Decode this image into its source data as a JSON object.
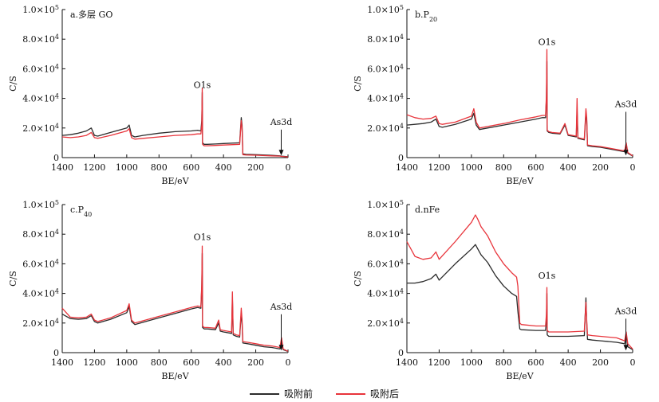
{
  "colors": {
    "before": "#2b2b2b",
    "after": "#e8343b",
    "axis": "#111111"
  },
  "legend": {
    "before_label": "吸附前",
    "after_label": "吸附后"
  },
  "chart_data": [
    {
      "type": "line",
      "panel_label": "a.多层 GO",
      "xlabel": "BE/eV",
      "ylabel": "C/S",
      "xlim": [
        1400,
        0
      ],
      "ylim": [
        0,
        100000
      ],
      "xticks": [
        "1400",
        "1200",
        "1000",
        "800",
        "600",
        "400",
        "200",
        "0"
      ],
      "yticks": [
        "0",
        "2.0×10⁴",
        "4.0×10⁴",
        "6.0×10⁴",
        "8.0×10⁴",
        "1.0×10⁵"
      ],
      "annotations": [
        {
          "text": "O1s",
          "x": 532,
          "y": 47000,
          "arrow": false
        },
        {
          "text": "As3d",
          "x": 42,
          "y": 20000,
          "arrow": true
        }
      ],
      "series": [
        {
          "name": "吸附前",
          "x": [
            1400,
            1350,
            1300,
            1250,
            1220,
            1200,
            1180,
            1100,
            1000,
            985,
            970,
            950,
            900,
            800,
            700,
            600,
            560,
            540,
            535,
            532,
            530,
            520,
            500,
            450,
            400,
            300,
            290,
            285,
            280,
            260,
            200,
            100,
            50,
            40,
            0
          ],
          "y": [
            15000,
            15500,
            16500,
            18000,
            20000,
            15000,
            14500,
            17000,
            20000,
            22000,
            15000,
            14000,
            15000,
            16500,
            17500,
            18000,
            18500,
            18000,
            25000,
            44000,
            10000,
            9000,
            9000,
            9200,
            9500,
            10000,
            27000,
            22000,
            2500,
            2200,
            2000,
            1500,
            1200,
            1000,
            600
          ]
        },
        {
          "name": "吸附后",
          "x": [
            1400,
            1350,
            1300,
            1250,
            1220,
            1200,
            1180,
            1100,
            1000,
            985,
            970,
            950,
            900,
            800,
            700,
            600,
            560,
            540,
            535,
            532,
            530,
            520,
            500,
            450,
            400,
            300,
            290,
            285,
            280,
            260,
            200,
            100,
            50,
            40,
            0
          ],
          "y": [
            14000,
            13500,
            14000,
            15000,
            17000,
            13500,
            13000,
            15000,
            18000,
            19500,
            13500,
            12500,
            13000,
            14000,
            15000,
            15500,
            16000,
            16000,
            22000,
            47000,
            9000,
            8000,
            8000,
            8200,
            8500,
            9000,
            25000,
            20000,
            2000,
            1800,
            1600,
            1200,
            1000,
            800,
            500
          ]
        }
      ]
    },
    {
      "type": "line",
      "panel_label": "b.P20",
      "xlabel": "BE/eV",
      "ylabel": "C/S",
      "xlim": [
        1400,
        0
      ],
      "ylim": [
        0,
        100000
      ],
      "xticks": [
        "1400",
        "1200",
        "1000",
        "800",
        "600",
        "400",
        "200",
        "0"
      ],
      "yticks": [
        "0",
        "2.0×10⁴",
        "4.0×10⁴",
        "6.0×10⁴",
        "8.0×10⁴",
        "1.0×10⁵"
      ],
      "annotations": [
        {
          "text": "O1s",
          "x": 532,
          "y": 76000,
          "arrow": false
        },
        {
          "text": "As3d",
          "x": 42,
          "y": 32000,
          "arrow": true
        }
      ],
      "series": [
        {
          "name": "吸附前",
          "x": [
            1400,
            1350,
            1300,
            1250,
            1220,
            1200,
            1180,
            1100,
            1000,
            985,
            970,
            950,
            900,
            800,
            700,
            600,
            560,
            540,
            535,
            532,
            530,
            520,
            500,
            450,
            420,
            400,
            350,
            345,
            340,
            300,
            290,
            285,
            280,
            250,
            200,
            150,
            100,
            50,
            40,
            30,
            0
          ],
          "y": [
            22000,
            22500,
            23000,
            24000,
            26000,
            21000,
            20500,
            22500,
            26000,
            30000,
            22000,
            19000,
            20000,
            22000,
            24000,
            26000,
            27000,
            27000,
            40000,
            65000,
            18000,
            17000,
            16500,
            16000,
            22000,
            15000,
            14000,
            32000,
            13000,
            12000,
            30000,
            25000,
            8000,
            7500,
            7000,
            6000,
            5000,
            4000,
            9000,
            3000,
            1000
          ]
        },
        {
          "name": "吸附后",
          "x": [
            1400,
            1350,
            1300,
            1250,
            1220,
            1200,
            1180,
            1100,
            1000,
            985,
            970,
            950,
            900,
            800,
            700,
            600,
            560,
            540,
            535,
            532,
            530,
            520,
            500,
            450,
            420,
            400,
            350,
            345,
            340,
            300,
            290,
            285,
            280,
            250,
            200,
            150,
            100,
            50,
            40,
            30,
            0
          ],
          "y": [
            29000,
            27000,
            26000,
            26500,
            28000,
            23000,
            22500,
            24000,
            28000,
            33000,
            24000,
            20000,
            21000,
            23000,
            25500,
            27500,
            28500,
            28500,
            42000,
            73000,
            18500,
            17500,
            17000,
            16500,
            23000,
            15500,
            14500,
            40000,
            13500,
            12500,
            33000,
            27000,
            8500,
            8000,
            7500,
            6500,
            5500,
            4500,
            10000,
            3500,
            1200
          ]
        }
      ]
    },
    {
      "type": "line",
      "panel_label": "c.P40",
      "xlabel": "BE/eV",
      "ylabel": "C/S",
      "xlim": [
        1400,
        0
      ],
      "ylim": [
        0,
        100000
      ],
      "xticks": [
        "1400",
        "1200",
        "1000",
        "800",
        "600",
        "400",
        "200",
        "0"
      ],
      "yticks": [
        "0",
        "2.0×10⁴",
        "4.0×10⁴",
        "6.0×10⁴",
        "8.0×10⁴",
        "1.0×10⁵"
      ],
      "annotations": [
        {
          "text": "O1s",
          "x": 532,
          "y": 76000,
          "arrow": false
        },
        {
          "text": "As3d",
          "x": 42,
          "y": 27000,
          "arrow": true
        }
      ],
      "series": [
        {
          "name": "吸附前",
          "x": [
            1400,
            1350,
            1300,
            1250,
            1220,
            1200,
            1180,
            1100,
            1000,
            985,
            970,
            950,
            900,
            800,
            700,
            600,
            560,
            540,
            535,
            532,
            530,
            520,
            500,
            450,
            430,
            420,
            400,
            350,
            345,
            340,
            320,
            300,
            290,
            285,
            280,
            250,
            200,
            150,
            100,
            50,
            40,
            30,
            0
          ],
          "y": [
            26000,
            23000,
            22500,
            23000,
            25000,
            21000,
            20000,
            22500,
            27000,
            31000,
            21000,
            19000,
            20500,
            23500,
            26500,
            29500,
            30500,
            30000,
            44000,
            67000,
            17000,
            16000,
            16000,
            15500,
            20000,
            14500,
            14000,
            13000,
            37000,
            12000,
            11000,
            10500,
            27000,
            20000,
            6500,
            6000,
            5000,
            4000,
            3500,
            2500,
            8000,
            2000,
            800
          ]
        },
        {
          "name": "吸附后",
          "x": [
            1400,
            1350,
            1300,
            1250,
            1220,
            1200,
            1180,
            1100,
            1000,
            985,
            970,
            950,
            900,
            800,
            700,
            600,
            560,
            540,
            535,
            532,
            530,
            520,
            500,
            450,
            430,
            420,
            400,
            350,
            345,
            340,
            320,
            300,
            290,
            285,
            280,
            250,
            200,
            150,
            100,
            50,
            40,
            30,
            0
          ],
          "y": [
            30000,
            24000,
            23500,
            24000,
            26000,
            22000,
            21000,
            23500,
            28500,
            33000,
            22000,
            20000,
            21500,
            24500,
            27500,
            30500,
            31500,
            31000,
            46000,
            72000,
            18000,
            17000,
            17000,
            16500,
            22000,
            15500,
            15000,
            14000,
            41000,
            13000,
            12000,
            11500,
            30000,
            22000,
            7500,
            7000,
            6000,
            5000,
            4500,
            3500,
            10000,
            2500,
            900
          ]
        }
      ]
    },
    {
      "type": "line",
      "panel_label": "d.nFe",
      "xlabel": "BE/eV",
      "ylabel": "C/S",
      "xlim": [
        1400,
        0
      ],
      "ylim": [
        0,
        100000
      ],
      "xticks": [
        "1400",
        "1200",
        "1000",
        "800",
        "600",
        "400",
        "200",
        "0"
      ],
      "yticks": [
        "0",
        "2.0×10⁴",
        "4.0×10⁴",
        "6.0×10⁴",
        "8.0×10⁴",
        "1.0×10⁵"
      ],
      "annotations": [
        {
          "text": "O1s",
          "x": 532,
          "y": 50000,
          "arrow": false
        },
        {
          "text": "As3d",
          "x": 42,
          "y": 24000,
          "arrow": true
        }
      ],
      "series": [
        {
          "name": "吸附前",
          "x": [
            1400,
            1350,
            1300,
            1250,
            1220,
            1200,
            1100,
            1000,
            975,
            960,
            940,
            900,
            850,
            800,
            750,
            720,
            712,
            700,
            690,
            600,
            560,
            540,
            535,
            532,
            530,
            520,
            500,
            400,
            300,
            290,
            285,
            280,
            250,
            200,
            100,
            50,
            40,
            30,
            0
          ],
          "y": [
            47000,
            47000,
            48000,
            50000,
            53000,
            49000,
            60000,
            70000,
            73000,
            70000,
            66000,
            61000,
            52000,
            45000,
            40000,
            38000,
            28000,
            16000,
            15500,
            15000,
            15000,
            15000,
            22000,
            40000,
            12000,
            11000,
            11000,
            11000,
            11500,
            37000,
            20000,
            9000,
            8500,
            8000,
            7000,
            6000,
            12000,
            4000,
            2000
          ]
        },
        {
          "name": "吸附后",
          "x": [
            1400,
            1350,
            1300,
            1250,
            1220,
            1200,
            1100,
            1000,
            975,
            960,
            940,
            900,
            850,
            800,
            750,
            720,
            712,
            700,
            690,
            600,
            560,
            540,
            535,
            532,
            530,
            520,
            500,
            400,
            300,
            290,
            285,
            280,
            250,
            200,
            100,
            50,
            40,
            30,
            0
          ],
          "y": [
            75000,
            65000,
            63000,
            64000,
            68000,
            63000,
            75000,
            88000,
            93000,
            90000,
            85000,
            79000,
            68000,
            60000,
            54000,
            51000,
            45000,
            20000,
            19000,
            18000,
            18000,
            18000,
            26000,
            44000,
            15000,
            14000,
            14000,
            14000,
            14500,
            34000,
            22000,
            12000,
            11500,
            11000,
            10000,
            8000,
            14000,
            6000,
            2500
          ]
        }
      ]
    }
  ]
}
